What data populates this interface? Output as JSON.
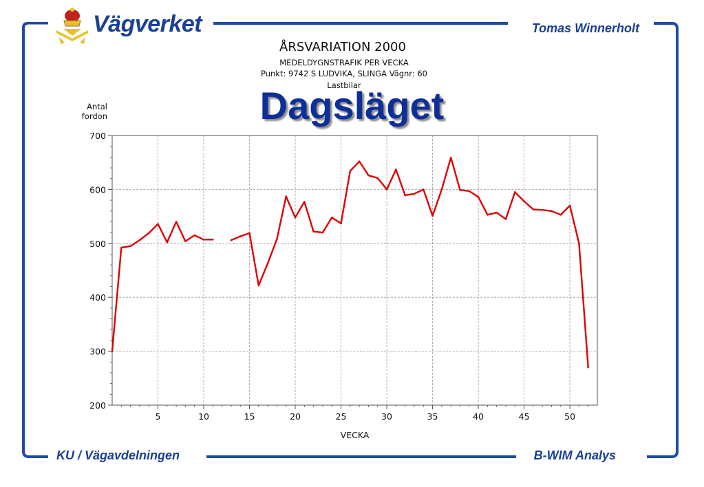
{
  "header": {
    "logo_text": "Vägverket",
    "author": "Tomas Winnerholt"
  },
  "slide": {
    "title": "Dagsläget"
  },
  "footer": {
    "left": "KU / Vägavdelningen",
    "right": "B-WIM Analys"
  },
  "colors": {
    "brand_blue": "#1a3f96",
    "frame_blue": "#1f4aa8",
    "series_red": "#e00000"
  },
  "chart_data": {
    "type": "line",
    "title": "ÅRSVARIATION 2000",
    "subtitle_lines": [
      "MEDELDYGNSTRAFIK PER VECKA",
      "Punkt: 9742  S LUDVIKA, SLINGA Vägnr: 60",
      "Lastbilar"
    ],
    "ylabel": "Antal fordon",
    "xlabel": "VECKA",
    "xlim": [
      0,
      53
    ],
    "ylim": [
      200,
      700
    ],
    "xticks": [
      5,
      10,
      15,
      20,
      25,
      30,
      35,
      40,
      45,
      50
    ],
    "yticks": [
      200,
      300,
      400,
      500,
      600,
      700
    ],
    "grid": true,
    "series": [
      {
        "x": [
          0,
          1,
          2,
          3,
          4,
          5,
          6,
          7,
          8,
          9,
          10,
          11,
          null,
          13,
          14,
          15,
          16,
          17,
          18,
          19,
          20,
          21,
          22,
          23,
          24,
          25,
          26,
          27,
          28,
          29,
          30,
          31,
          32,
          33,
          34,
          35,
          36,
          37,
          38,
          39,
          40,
          41,
          42,
          43,
          44,
          45,
          46,
          47,
          48,
          49,
          50,
          51,
          52
        ],
        "y": [
          300,
          492,
          495,
          506,
          519,
          536,
          502,
          540,
          504,
          515,
          507,
          507,
          null,
          506,
          513,
          519,
          422,
          463,
          508,
          587,
          548,
          577,
          522,
          520,
          548,
          537,
          634,
          652,
          626,
          621,
          600,
          637,
          589,
          592,
          600,
          551,
          600,
          659,
          599,
          597,
          586,
          553,
          557,
          545,
          595,
          578,
          563,
          562,
          560,
          553,
          570,
          500,
          270
        ]
      }
    ]
  }
}
